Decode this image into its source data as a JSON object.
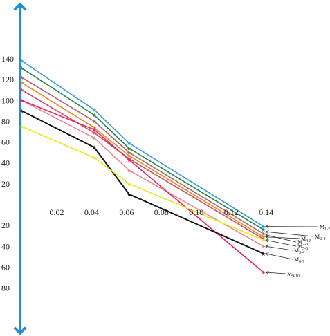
{
  "chart_data": {
    "type": "line",
    "title": "",
    "xlabel": "",
    "ylabel": "",
    "xlim": [
      -0.001,
      0.156
    ],
    "ylim": [
      -110,
      160
    ],
    "x_ticks": [
      {
        "value": 0.02,
        "label": "0.02"
      },
      {
        "value": 0.04,
        "label": "0.04"
      },
      {
        "value": 0.06,
        "label": "0.06"
      },
      {
        "value": 0.08,
        "label": "0.08"
      },
      {
        "value": 0.1,
        "label": "0.10"
      },
      {
        "value": 0.12,
        "label": "0.12"
      },
      {
        "value": 0.14,
        "label": "0.14"
      }
    ],
    "y_ticks": [
      {
        "value": 140,
        "label": "140"
      },
      {
        "value": 120,
        "label": "120"
      },
      {
        "value": 100,
        "label": "100"
      },
      {
        "value": 80,
        "label": "80"
      },
      {
        "value": 60,
        "label": "60"
      },
      {
        "value": 40,
        "label": "40"
      },
      {
        "value": 20,
        "label": "20"
      },
      {
        "value": -20,
        "label": "20"
      },
      {
        "value": -40,
        "label": "40"
      },
      {
        "value": -60,
        "label": "60"
      },
      {
        "value": -80,
        "label": "80"
      }
    ],
    "grid": false,
    "legend": "right",
    "axis_color": "#1f8fd0",
    "series": [
      {
        "name": "",
        "color": "#3a9bd6",
        "x": [
          0,
          0.0415,
          0.0615,
          0.1385
        ],
        "y": [
          138,
          91,
          59,
          -21
        ]
      },
      {
        "name": "",
        "color": "#1e8a3e",
        "x": [
          0,
          0.0415,
          0.0615,
          0.1385
        ],
        "y": [
          131,
          86,
          54,
          -24
        ]
      },
      {
        "name": "",
        "color": "#b05f78",
        "x": [
          0,
          0.0415,
          0.0615,
          0.1385
        ],
        "y": [
          122,
          80,
          50,
          -28
        ]
      },
      {
        "name": "",
        "color": "#e88a1a",
        "x": [
          0,
          0.0415,
          0.0615,
          0.1385
        ],
        "y": [
          117,
          74,
          47,
          -31
        ]
      },
      {
        "name": "",
        "color": "#c84b6a",
        "x": [
          0,
          0.0415,
          0.0615,
          0.1385
        ],
        "y": [
          110,
          69,
          44,
          -33
        ]
      },
      {
        "name": "",
        "color": "#e88a92",
        "x": [
          0,
          0.0415,
          0.0615,
          0.1385
        ],
        "y": [
          100,
          64,
          33,
          -40
        ]
      },
      {
        "name": "",
        "color": "#ee1f5c",
        "x": [
          0,
          0.0415,
          0.0615,
          0.1385
        ],
        "y": [
          100,
          72,
          43,
          -65
        ]
      },
      {
        "name": "",
        "color": "#111111",
        "x": [
          0,
          0.0415,
          0.0615,
          0.1385
        ],
        "y": [
          90,
          55,
          10,
          -47
        ]
      },
      {
        "name": "",
        "color": "#e8e820",
        "x": [
          0,
          0.0415,
          0.0615,
          0.1385
        ],
        "y": [
          75,
          45,
          20,
          -34
        ]
      }
    ],
    "legend_labels": [
      {
        "text": "M",
        "sub": "1-2",
        "series": 0,
        "arrow_to": [
          0.1385,
          -21
        ]
      },
      {
        "text": "M",
        "sub": "2-4",
        "series": 1,
        "arrow_to": [
          0.1385,
          -26
        ]
      },
      {
        "text": "M",
        "sub": "2-3",
        "series": 2,
        "arrow_to": [
          0.1385,
          -29
        ]
      },
      {
        "text": "M",
        "sub": "4-5",
        "series": 3,
        "arrow_to": [
          0.1385,
          -31
        ]
      },
      {
        "text": "M",
        "sub": "5-6",
        "series": 4,
        "arrow_to": [
          0.1385,
          -34
        ]
      },
      {
        "text": "M",
        "sub": "3-4",
        "series": 5,
        "arrow_to": [
          0.1385,
          -40
        ]
      },
      {
        "text": "M",
        "sub": "6-7",
        "series": 7,
        "arrow_to": [
          0.1385,
          -47
        ]
      },
      {
        "text": "M",
        "sub": "9-10",
        "series": 6,
        "arrow_to": [
          0.1385,
          -65
        ]
      }
    ]
  }
}
